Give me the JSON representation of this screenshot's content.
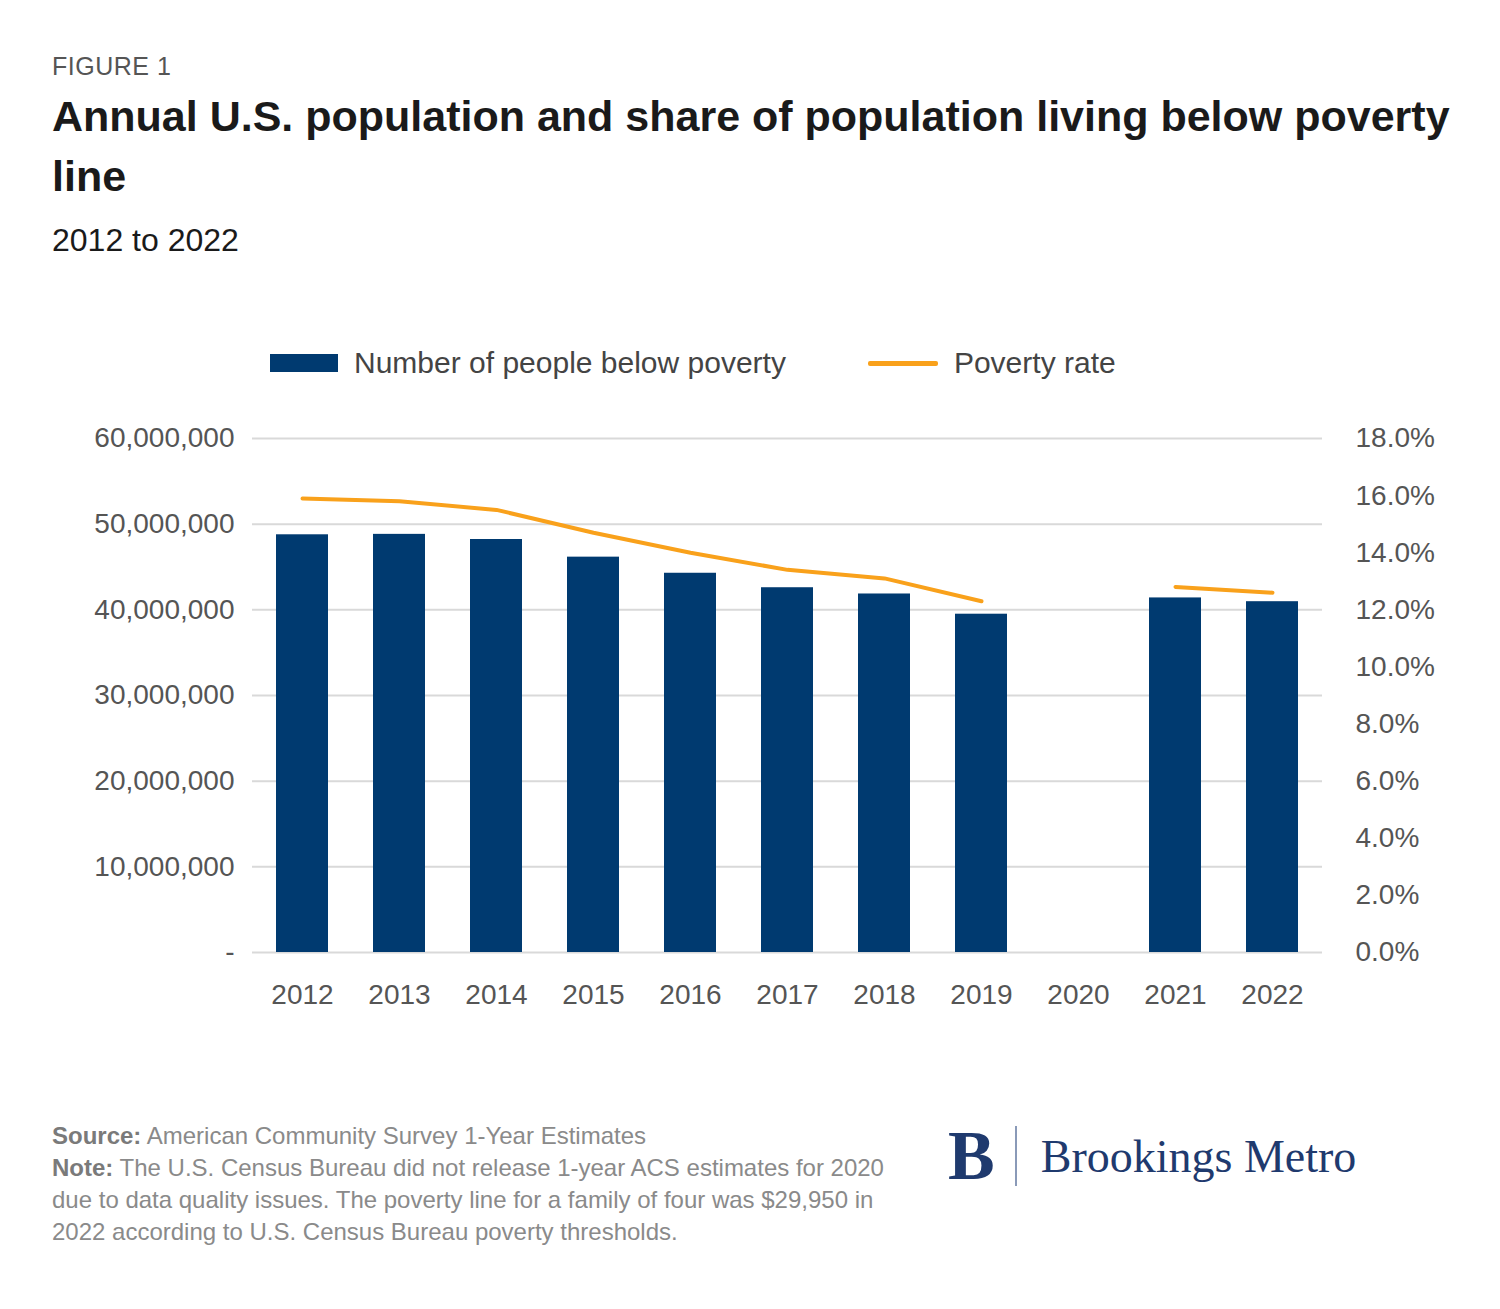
{
  "chart_data": {
    "type": "bar",
    "kicker": "FIGURE 1",
    "title": "Annual U.S. population and share of population living below poverty line",
    "subtitle": "2012 to 2022",
    "categories": [
      "2012",
      "2013",
      "2014",
      "2015",
      "2016",
      "2017",
      "2018",
      "2019",
      "2020",
      "2021",
      "2022"
    ],
    "series": [
      {
        "name": "Number of people below poverty",
        "type": "bar",
        "color": "#003a70",
        "values": [
          48760000,
          48810000,
          48210000,
          46150000,
          44270000,
          42580000,
          41850000,
          39490000,
          null,
          41390000,
          40950000
        ]
      },
      {
        "name": "Poverty rate",
        "type": "line",
        "axis": "y2",
        "color": "#f9a11b",
        "values": [
          15.9,
          15.8,
          15.5,
          14.7,
          14.0,
          13.4,
          13.1,
          12.3,
          null,
          12.8,
          12.6
        ]
      }
    ],
    "ylim": [
      0,
      60000000
    ],
    "yticks": [
      {
        "value": 0,
        "label": "-"
      },
      {
        "value": 10000000,
        "label": "10,000,000"
      },
      {
        "value": 20000000,
        "label": "20,000,000"
      },
      {
        "value": 30000000,
        "label": "30,000,000"
      },
      {
        "value": 40000000,
        "label": "40,000,000"
      },
      {
        "value": 50000000,
        "label": "50,000,000"
      },
      {
        "value": 60000000,
        "label": "60,000,000"
      }
    ],
    "y2lim": [
      0,
      18
    ],
    "y2ticks": [
      {
        "value": 0,
        "label": "0.0%"
      },
      {
        "value": 2,
        "label": "2.0%"
      },
      {
        "value": 4,
        "label": "4.0%"
      },
      {
        "value": 6,
        "label": "6.0%"
      },
      {
        "value": 8,
        "label": "8.0%"
      },
      {
        "value": 10,
        "label": "10.0%"
      },
      {
        "value": 12,
        "label": "12.0%"
      },
      {
        "value": 14,
        "label": "14.0%"
      },
      {
        "value": 16,
        "label": "16.0%"
      },
      {
        "value": 18,
        "label": "18.0%"
      }
    ],
    "grid": true,
    "legend": "top",
    "source_label": "Source:",
    "source": "American Community Survey 1-Year Estimates",
    "note_label": "Note:",
    "note": "The U.S. Census Bureau did not release 1-year ACS estimates for 2020 due to data quality issues. The poverty line for a family of four was $29,950 in 2022 according to U.S. Census Bureau poverty thresholds.",
    "logo_mark": "B",
    "logo": "Brookings Metro"
  }
}
